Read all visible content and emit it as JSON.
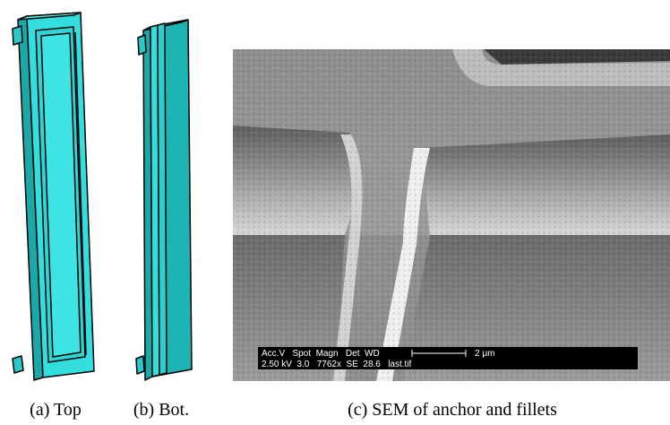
{
  "figure": {
    "subfigures": [
      {
        "caption": "(a) Top"
      },
      {
        "caption": "(b) Bot."
      },
      {
        "caption": "(c) SEM of anchor and fillets"
      }
    ],
    "sem_info_bar": {
      "header": "Acc.V   Spot  Magn   Det  WD",
      "scale_label": "2 μm",
      "values": "2.50 kV  3.0   7762x  SE  28.6   last.tif"
    }
  }
}
